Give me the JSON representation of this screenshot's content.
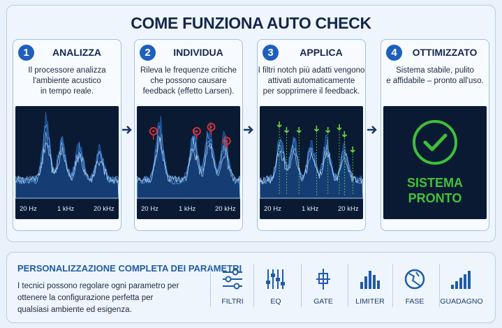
{
  "title": "COME FUNZIONA AUTO CHECK",
  "steps": [
    {
      "number": "1",
      "title": "ANALIZZA",
      "description": [
        "Il processore analizza",
        "l'ambiente acustico",
        "in tempo reale."
      ],
      "axis_labels": [
        "20 Hz",
        "1 kHz",
        "20 kHz"
      ]
    },
    {
      "number": "2",
      "title": "INDIVIDUA",
      "description": [
        "Rileva le frequenze critiche",
        "che possono causare",
        "feedback (effetto Larsen)."
      ],
      "axis_labels": [
        "20 Hz",
        "1 kHz",
        "20 kHz"
      ]
    },
    {
      "number": "3",
      "title": "APPLICA",
      "description": [
        "I filtri notch più adatti vengono",
        "attivati automaticamente",
        "per sopprimere il feedback."
      ],
      "axis_labels": [
        "20 Hz",
        "1 kHz",
        "20 kHz"
      ]
    },
    {
      "number": "4",
      "title": "OTTIMIZZATO",
      "description": [
        "Sistema stabile, pulito",
        "e affidabile – pronto all'uso."
      ],
      "status": [
        "SISTEMA",
        "PRONTO"
      ]
    }
  ],
  "customization": {
    "title": "PERSONALIZZAZIONE COMPLETA DEI PARAMETRI",
    "description": [
      "I tecnici possono regolare ogni parametro per",
      "ottenere la configurazione perfetta per",
      "qualsiasi ambiente ed esigenza."
    ],
    "parameters": [
      "FILTRI",
      "EQ",
      "GATE",
      "LIMITER",
      "FASE",
      "GUADAGNO"
    ]
  }
}
